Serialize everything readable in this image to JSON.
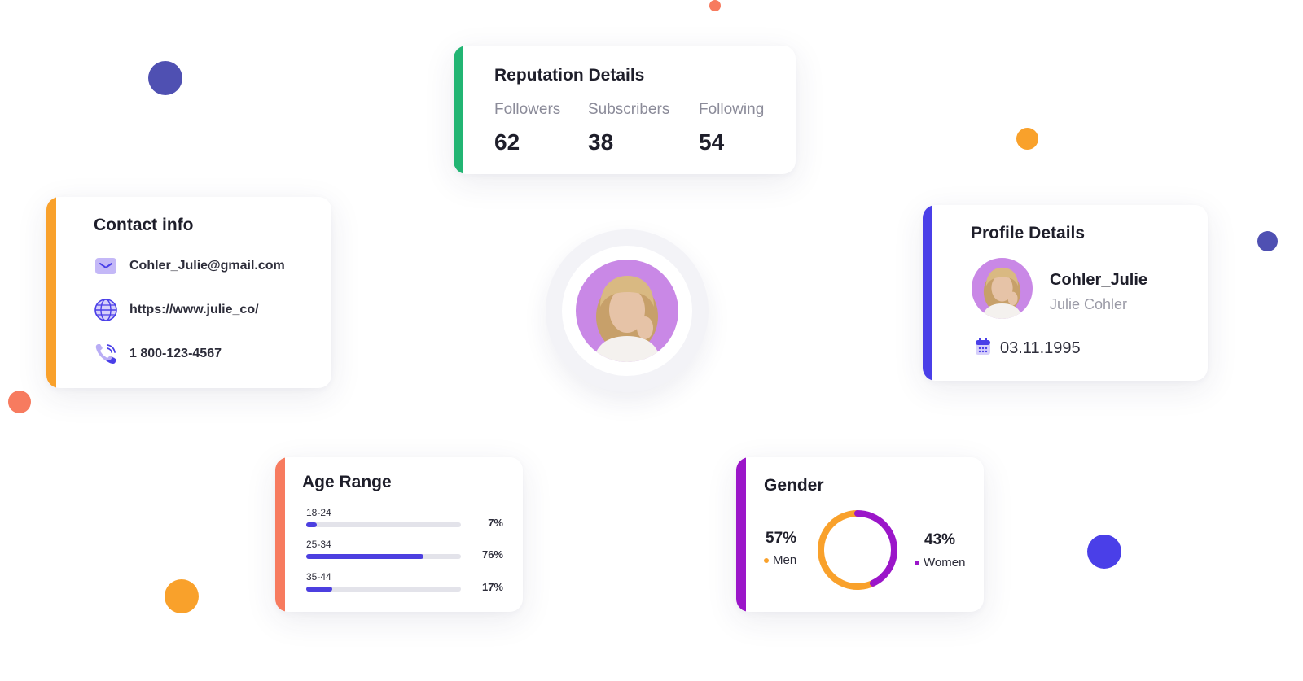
{
  "colors": {
    "green": "#22b573",
    "orange": "#f9a12b",
    "indigo": "#4a3fe8",
    "coral": "#f77b5f",
    "purple": "#9b16c9",
    "navy_dot": "#4f50b2",
    "bar": "#4c3fe0"
  },
  "reputation": {
    "title": "Reputation Details",
    "stats": [
      {
        "label": "Followers",
        "value": "62"
      },
      {
        "label": "Subscribers",
        "value": "38"
      },
      {
        "label": "Following",
        "value": "54"
      }
    ]
  },
  "contact": {
    "title": "Contact info",
    "email": "Cohler_Julie@gmail.com",
    "website": "https://www.julie_co/",
    "phone": "1 800-123-4567",
    "icons": [
      "mail-icon",
      "globe-icon",
      "phone-icon"
    ]
  },
  "profile": {
    "title": "Profile Details",
    "username": "Cohler_Julie",
    "name": "Julie Cohler",
    "birthdate": "03.11.1995",
    "icons": [
      "calendar-icon"
    ]
  },
  "age": {
    "title": "Age Range",
    "ranges": [
      {
        "label": "18-24",
        "pct": "7%",
        "value": 7
      },
      {
        "label": "25-34",
        "pct": "76%",
        "value": 76
      },
      {
        "label": "35-44",
        "pct": "17%",
        "value": 17
      }
    ]
  },
  "gender": {
    "title": "Gender",
    "men": {
      "pct": "57%",
      "label": "Men",
      "value": 57,
      "color": "#f9a12b"
    },
    "women": {
      "pct": "43%",
      "label": "Women",
      "value": 43,
      "color": "#9b16c9"
    }
  }
}
